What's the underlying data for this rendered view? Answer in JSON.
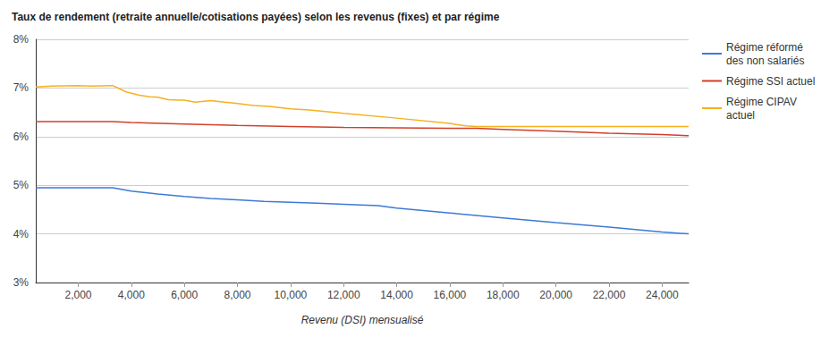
{
  "chart_data": {
    "type": "line",
    "title": "Taux de rendement (retraite annuelle/cotisations payées) selon les revenus (fixes) et par régime",
    "x_label": "Revenu (DSI) mensualisé",
    "xlim": [
      400,
      25000
    ],
    "xticks": [
      {
        "value": 2000,
        "label": "2,000"
      },
      {
        "value": 4000,
        "label": "4,000"
      },
      {
        "value": 6000,
        "label": "6,000"
      },
      {
        "value": 8000,
        "label": "8,000"
      },
      {
        "value": 10000,
        "label": "10,000"
      },
      {
        "value": 12000,
        "label": "12,000"
      },
      {
        "value": 14000,
        "label": "14,000"
      },
      {
        "value": 16000,
        "label": "16,000"
      },
      {
        "value": 18000,
        "label": "18,000"
      },
      {
        "value": 20000,
        "label": "20,000"
      },
      {
        "value": 22000,
        "label": "22,000"
      },
      {
        "value": 24000,
        "label": "24,000"
      }
    ],
    "ylim": [
      3,
      8
    ],
    "yticks": [
      {
        "value": 3,
        "label": "3%"
      },
      {
        "value": 4,
        "label": "4%"
      },
      {
        "value": 5,
        "label": "5%"
      },
      {
        "value": 6,
        "label": "6%"
      },
      {
        "value": 7,
        "label": "7%"
      },
      {
        "value": 8,
        "label": "8%"
      }
    ],
    "grid": true,
    "legend": "right",
    "line_style": "solid",
    "series": [
      {
        "name": "Régime réformé des non salariés",
        "color": "#3d7ad6",
        "x": [
          400,
          3300,
          4000,
          5000,
          6000,
          7000,
          8000,
          9000,
          10000,
          11000,
          12000,
          13300,
          14000,
          16000,
          18000,
          20000,
          22000,
          24000,
          25000
        ],
        "values": [
          4.95,
          4.95,
          4.88,
          4.82,
          4.77,
          4.73,
          4.7,
          4.67,
          4.65,
          4.63,
          4.61,
          4.58,
          4.53,
          4.43,
          4.33,
          4.23,
          4.14,
          4.04,
          4.0
        ]
      },
      {
        "name": "Régime SSI actuel",
        "color": "#d2402a",
        "x": [
          400,
          3300,
          4000,
          6000,
          8000,
          10000,
          12000,
          14000,
          16000,
          17000,
          18000,
          20000,
          22000,
          24000,
          25000
        ],
        "values": [
          6.31,
          6.31,
          6.29,
          6.26,
          6.23,
          6.21,
          6.19,
          6.18,
          6.17,
          6.17,
          6.15,
          6.11,
          6.07,
          6.04,
          6.02
        ]
      },
      {
        "name": "Régime CIPAV actuel",
        "color": "#f5b120",
        "x": [
          400,
          1000,
          2000,
          2500,
          3300,
          3800,
          4300,
          4700,
          5000,
          5400,
          5800,
          6000,
          6400,
          7000,
          7500,
          8000,
          8600,
          9200,
          10000,
          10700,
          12000,
          14000,
          16000,
          16600,
          17000,
          25000
        ],
        "values": [
          7.02,
          7.04,
          7.05,
          7.04,
          7.05,
          6.92,
          6.85,
          6.82,
          6.81,
          6.76,
          6.75,
          6.75,
          6.71,
          6.74,
          6.71,
          6.68,
          6.64,
          6.62,
          6.57,
          6.55,
          6.48,
          6.38,
          6.27,
          6.22,
          6.21,
          6.21
        ]
      }
    ]
  }
}
